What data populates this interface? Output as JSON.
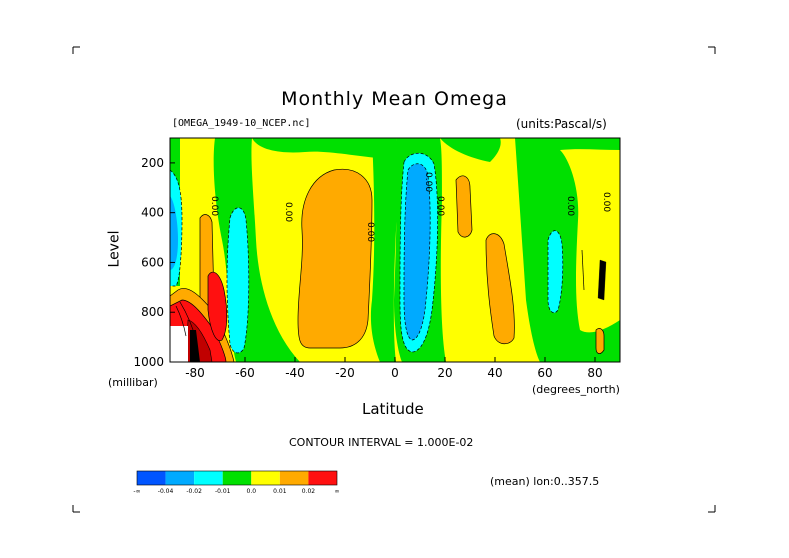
{
  "chart_data": {
    "type": "heatmap",
    "title": "Monthly Mean Omega",
    "dataset_label": "[OMEGA_1949-10_NCEP.nc]",
    "units_label": "(units:Pascal/s)",
    "xlabel": "Latitude",
    "x_unit": "(degrees_north)",
    "ylabel": "Level",
    "y_unit": "(millibar)",
    "xlim": [
      -90,
      90
    ],
    "ylim": [
      1000,
      100
    ],
    "x_ticks": [
      -80,
      -60,
      -40,
      -20,
      0,
      20,
      40,
      60,
      80
    ],
    "x_tick_labels": [
      "-80",
      "-60",
      "-40",
      "-20",
      "0",
      "20",
      "40",
      "60",
      "80"
    ],
    "y_ticks": [
      200,
      400,
      600,
      800,
      1000
    ],
    "y_tick_labels": [
      "200",
      "400",
      "600",
      "800",
      "1000"
    ],
    "contour_interval": "CONTOUR INTERVAL = 1.000E-02",
    "contour_labels": [
      "0.00",
      "0.00",
      "0.00",
      "0.00",
      "0.00",
      "0.00",
      "0.00"
    ],
    "region_note": "(mean) lon:0..357.5",
    "colorbar": {
      "colors": [
        "#0055ff",
        "#00aaff",
        "#00ffff",
        "#00e000",
        "#ffff00",
        "#ffaa00",
        "#ff1010"
      ],
      "labels": [
        "-∞",
        "-0.04",
        "-0.02",
        "-0.01",
        "0.0",
        "0.01",
        "0.02",
        "∞"
      ]
    },
    "fields": [
      {
        "x": -88,
        "y": 450,
        "value": -0.03
      },
      {
        "x": -82,
        "y": 820,
        "value": 0.05
      },
      {
        "x": -68,
        "y": 500,
        "value": -0.02
      },
      {
        "x": -62,
        "y": 400,
        "value": -0.02
      },
      {
        "x": -20,
        "y": 560,
        "value": 0.012
      },
      {
        "x": 8,
        "y": 480,
        "value": -0.035
      },
      {
        "x": 27,
        "y": 360,
        "value": 0.011
      },
      {
        "x": 37,
        "y": 680,
        "value": 0.012
      },
      {
        "x": 65,
        "y": 620,
        "value": -0.025
      },
      {
        "x": 83,
        "y": 940,
        "value": 0.011
      }
    ]
  }
}
